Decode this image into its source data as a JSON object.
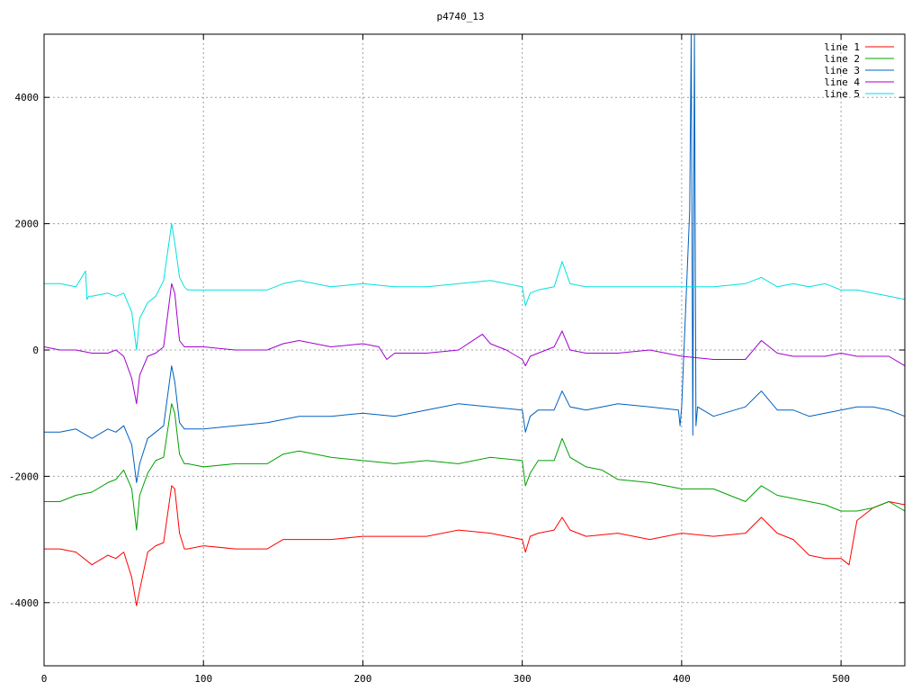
{
  "chart_data": {
    "type": "line",
    "title": "p4740_13",
    "xlabel": "",
    "ylabel": "",
    "xlim": [
      0,
      540
    ],
    "ylim": [
      -5000,
      5000
    ],
    "xticks": [
      0,
      100,
      200,
      300,
      400,
      500
    ],
    "yticks": [
      -4000,
      -2000,
      0,
      2000,
      4000
    ],
    "ytick_labels": [
      "-4000",
      "-2000",
      "0",
      "2000",
      "4000"
    ],
    "grid": true,
    "legend_position": "top-right",
    "series": [
      {
        "name": "line 1",
        "color": "#ff0000",
        "x": [
          0,
          10,
          20,
          30,
          40,
          45,
          50,
          55,
          58,
          60,
          65,
          70,
          75,
          80,
          82,
          85,
          88,
          90,
          100,
          120,
          140,
          150,
          160,
          180,
          200,
          220,
          240,
          260,
          280,
          300,
          302,
          305,
          310,
          320,
          325,
          330,
          340,
          360,
          380,
          400,
          420,
          440,
          450,
          460,
          470,
          480,
          490,
          500,
          505,
          510,
          520,
          530,
          540
        ],
        "y": [
          -3150,
          -3150,
          -3200,
          -3400,
          -3250,
          -3300,
          -3200,
          -3600,
          -4050,
          -3800,
          -3200,
          -3100,
          -3050,
          -2150,
          -2200,
          -2900,
          -3150,
          -3150,
          -3100,
          -3150,
          -3150,
          -3000,
          -3000,
          -3000,
          -2950,
          -2950,
          -2950,
          -2850,
          -2900,
          -3000,
          -3200,
          -2950,
          -2900,
          -2850,
          -2650,
          -2850,
          -2950,
          -2900,
          -3000,
          -2900,
          -2950,
          -2900,
          -2650,
          -2900,
          -3000,
          -3250,
          -3300,
          -3300,
          -3400,
          -2700,
          -2500,
          -2400,
          -2450
        ]
      },
      {
        "name": "line 2",
        "color": "#00a000",
        "x": [
          0,
          10,
          20,
          30,
          40,
          45,
          50,
          55,
          58,
          60,
          65,
          70,
          75,
          80,
          82,
          85,
          88,
          90,
          100,
          120,
          140,
          150,
          160,
          180,
          200,
          220,
          240,
          260,
          280,
          300,
          302,
          305,
          310,
          320,
          325,
          330,
          340,
          350,
          360,
          380,
          400,
          420,
          440,
          450,
          460,
          470,
          480,
          490,
          500,
          510,
          520,
          530,
          540
        ],
        "y": [
          -2400,
          -2400,
          -2300,
          -2250,
          -2100,
          -2050,
          -1900,
          -2200,
          -2850,
          -2300,
          -1950,
          -1750,
          -1700,
          -850,
          -1000,
          -1650,
          -1800,
          -1800,
          -1850,
          -1800,
          -1800,
          -1650,
          -1600,
          -1700,
          -1750,
          -1800,
          -1750,
          -1800,
          -1700,
          -1750,
          -2150,
          -1950,
          -1750,
          -1750,
          -1400,
          -1700,
          -1850,
          -1900,
          -2050,
          -2100,
          -2200,
          -2200,
          -2400,
          -2150,
          -2300,
          -2350,
          -2400,
          -2450,
          -2550,
          -2550,
          -2500,
          -2400,
          -2550
        ]
      },
      {
        "name": "line 3",
        "color": "#0060c0",
        "x": [
          0,
          10,
          20,
          30,
          40,
          45,
          50,
          55,
          58,
          60,
          65,
          70,
          75,
          80,
          82,
          85,
          88,
          90,
          100,
          120,
          140,
          150,
          160,
          180,
          200,
          220,
          240,
          260,
          280,
          300,
          302,
          305,
          310,
          320,
          325,
          330,
          340,
          360,
          380,
          398,
          399,
          400,
          405,
          406,
          407,
          408,
          409,
          410,
          420,
          440,
          450,
          460,
          470,
          480,
          490,
          500,
          510,
          520,
          530,
          540
        ],
        "y": [
          -1300,
          -1300,
          -1250,
          -1400,
          -1250,
          -1300,
          -1200,
          -1500,
          -2100,
          -1800,
          -1400,
          -1300,
          -1200,
          -250,
          -500,
          -1150,
          -1250,
          -1250,
          -1250,
          -1200,
          -1150,
          -1100,
          -1050,
          -1050,
          -1000,
          -1050,
          -950,
          -850,
          -900,
          -950,
          -1300,
          -1050,
          -950,
          -950,
          -650,
          -900,
          -950,
          -850,
          -900,
          -950,
          -1200,
          -900,
          2200,
          5000,
          -1350,
          5000,
          -1200,
          -900,
          -1050,
          -900,
          -650,
          -950,
          -950,
          -1050,
          -1000,
          -950,
          -900,
          -900,
          -950,
          -1050
        ]
      },
      {
        "name": "line 4",
        "color": "#a000d0",
        "x": [
          0,
          10,
          20,
          30,
          40,
          45,
          50,
          55,
          58,
          60,
          65,
          70,
          75,
          80,
          82,
          85,
          88,
          90,
          100,
          120,
          140,
          150,
          160,
          180,
          200,
          210,
          215,
          220,
          240,
          260,
          275,
          280,
          290,
          300,
          302,
          305,
          310,
          320,
          325,
          330,
          340,
          360,
          380,
          400,
          420,
          440,
          450,
          460,
          470,
          480,
          490,
          500,
          510,
          520,
          530,
          540
        ],
        "y": [
          50,
          0,
          0,
          -50,
          -50,
          0,
          -100,
          -450,
          -850,
          -400,
          -100,
          -50,
          50,
          1050,
          900,
          150,
          50,
          50,
          50,
          0,
          0,
          100,
          150,
          50,
          100,
          50,
          -150,
          -50,
          -50,
          0,
          250,
          100,
          0,
          -150,
          -250,
          -100,
          -50,
          50,
          300,
          0,
          -50,
          -50,
          0,
          -100,
          -150,
          -150,
          150,
          -50,
          -100,
          -100,
          -100,
          -50,
          -100,
          -100,
          -100,
          -250
        ]
      },
      {
        "name": "line 5",
        "color": "#00e0e0",
        "x": [
          0,
          10,
          20,
          26,
          27,
          28,
          30,
          40,
          45,
          50,
          55,
          58,
          60,
          65,
          70,
          75,
          80,
          82,
          85,
          88,
          90,
          100,
          120,
          140,
          150,
          160,
          180,
          200,
          220,
          240,
          260,
          280,
          300,
          302,
          305,
          310,
          320,
          325,
          330,
          340,
          360,
          380,
          400,
          420,
          440,
          450,
          460,
          470,
          480,
          490,
          500,
          510,
          520,
          530,
          540
        ],
        "y": [
          1050,
          1050,
          1000,
          1250,
          800,
          850,
          850,
          900,
          850,
          900,
          600,
          0,
          500,
          750,
          850,
          1100,
          2000,
          1700,
          1150,
          1000,
          950,
          950,
          950,
          950,
          1050,
          1100,
          1000,
          1050,
          1000,
          1000,
          1050,
          1100,
          1000,
          700,
          900,
          950,
          1000,
          1400,
          1050,
          1000,
          1000,
          1000,
          1000,
          1000,
          1050,
          1150,
          1000,
          1050,
          1000,
          1050,
          950,
          950,
          900,
          850,
          800
        ]
      }
    ]
  }
}
